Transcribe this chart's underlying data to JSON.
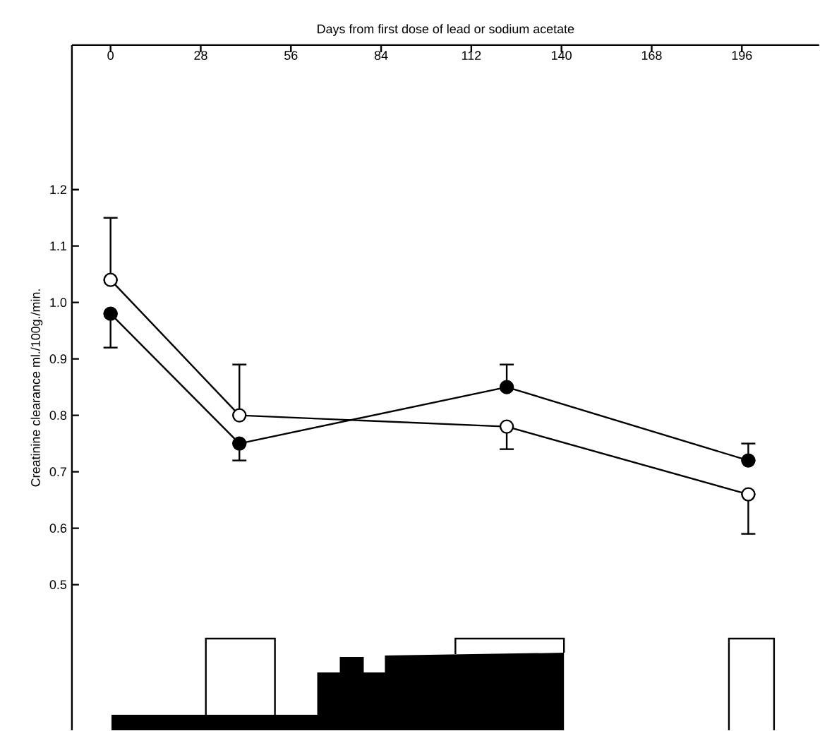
{
  "chart_data": {
    "type": "line",
    "xlabel": "Days from first dose of lead or sodium acetate",
    "ylabel": "Creatinine clearance ml./100g./min.",
    "x": [
      0,
      40,
      123,
      198
    ],
    "xlim": [
      -12,
      220
    ],
    "xticks": [
      0,
      28,
      56,
      84,
      112,
      140,
      168,
      196
    ],
    "ylim": [
      0.242,
      1.456
    ],
    "yticks": [
      0.5,
      0.6,
      0.7,
      0.8,
      0.9,
      {
        "value": 1.0,
        "label": "1.0"
      },
      1.1,
      1.2
    ],
    "grid": false,
    "marker": "circle",
    "line_style": "solid",
    "series": [
      {
        "color": "#000000",
        "values": [
          0.98,
          0.75,
          0.85,
          0.72
        ],
        "errors": [
          [
            0.92,
            0.98
          ],
          [
            0.72,
            0.75
          ],
          [
            0.85,
            0.89
          ],
          [
            0.72,
            0.75
          ]
        ]
      },
      {
        "color": "#000000",
        "values": [
          1.04,
          0.8,
          0.78,
          0.66
        ],
        "errors": [
          [
            1.04,
            1.15
          ],
          [
            0.8,
            0.89
          ],
          [
            0.74,
            0.78
          ],
          [
            0.59,
            0.66
          ]
        ]
      }
    ]
  }
}
